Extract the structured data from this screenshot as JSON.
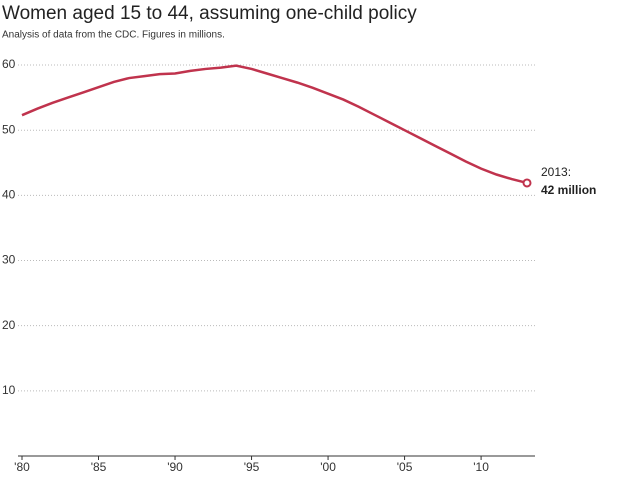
{
  "chart_data": {
    "type": "line",
    "title": "Women aged 15 to 44, assuming one-child policy",
    "subtitle": "Analysis of data from the CDC. Figures in millions.",
    "x": [
      1980,
      1981,
      1982,
      1983,
      1984,
      1985,
      1986,
      1987,
      1988,
      1989,
      1990,
      1991,
      1992,
      1993,
      1994,
      1995,
      1996,
      1997,
      1998,
      1999,
      2000,
      2001,
      2002,
      2003,
      2004,
      2005,
      2006,
      2007,
      2008,
      2009,
      2010,
      2011,
      2012,
      2013
    ],
    "series": [
      {
        "name": "Women aged 15 to 44",
        "color": "#c0334d",
        "values": [
          52.3,
          53.3,
          54.2,
          55,
          55.8,
          56.6,
          57.4,
          58,
          58.3,
          58.6,
          58.7,
          59.1,
          59.4,
          59.6,
          59.9,
          59.4,
          58.7,
          58,
          57.3,
          56.5,
          55.6,
          54.7,
          53.6,
          52.4,
          51.2,
          50,
          48.8,
          47.6,
          46.4,
          45.2,
          44.1,
          43.2,
          42.5,
          41.9
        ]
      }
    ],
    "xlim": [
      1980,
      2013
    ],
    "xticks": [
      {
        "value": 1980,
        "label": "'80"
      },
      {
        "value": 1985,
        "label": "'85"
      },
      {
        "value": 1990,
        "label": "'90"
      },
      {
        "value": 1995,
        "label": "'95"
      },
      {
        "value": 2000,
        "label": "'00"
      },
      {
        "value": 2005,
        "label": "'05"
      },
      {
        "value": 2010,
        "label": "'10"
      }
    ],
    "ylim": [
      0,
      62
    ],
    "yticks": [
      10,
      20,
      30,
      40,
      50,
      60
    ],
    "grid": true,
    "annotation": {
      "line1": "2013:",
      "line2": "42 million"
    }
  }
}
